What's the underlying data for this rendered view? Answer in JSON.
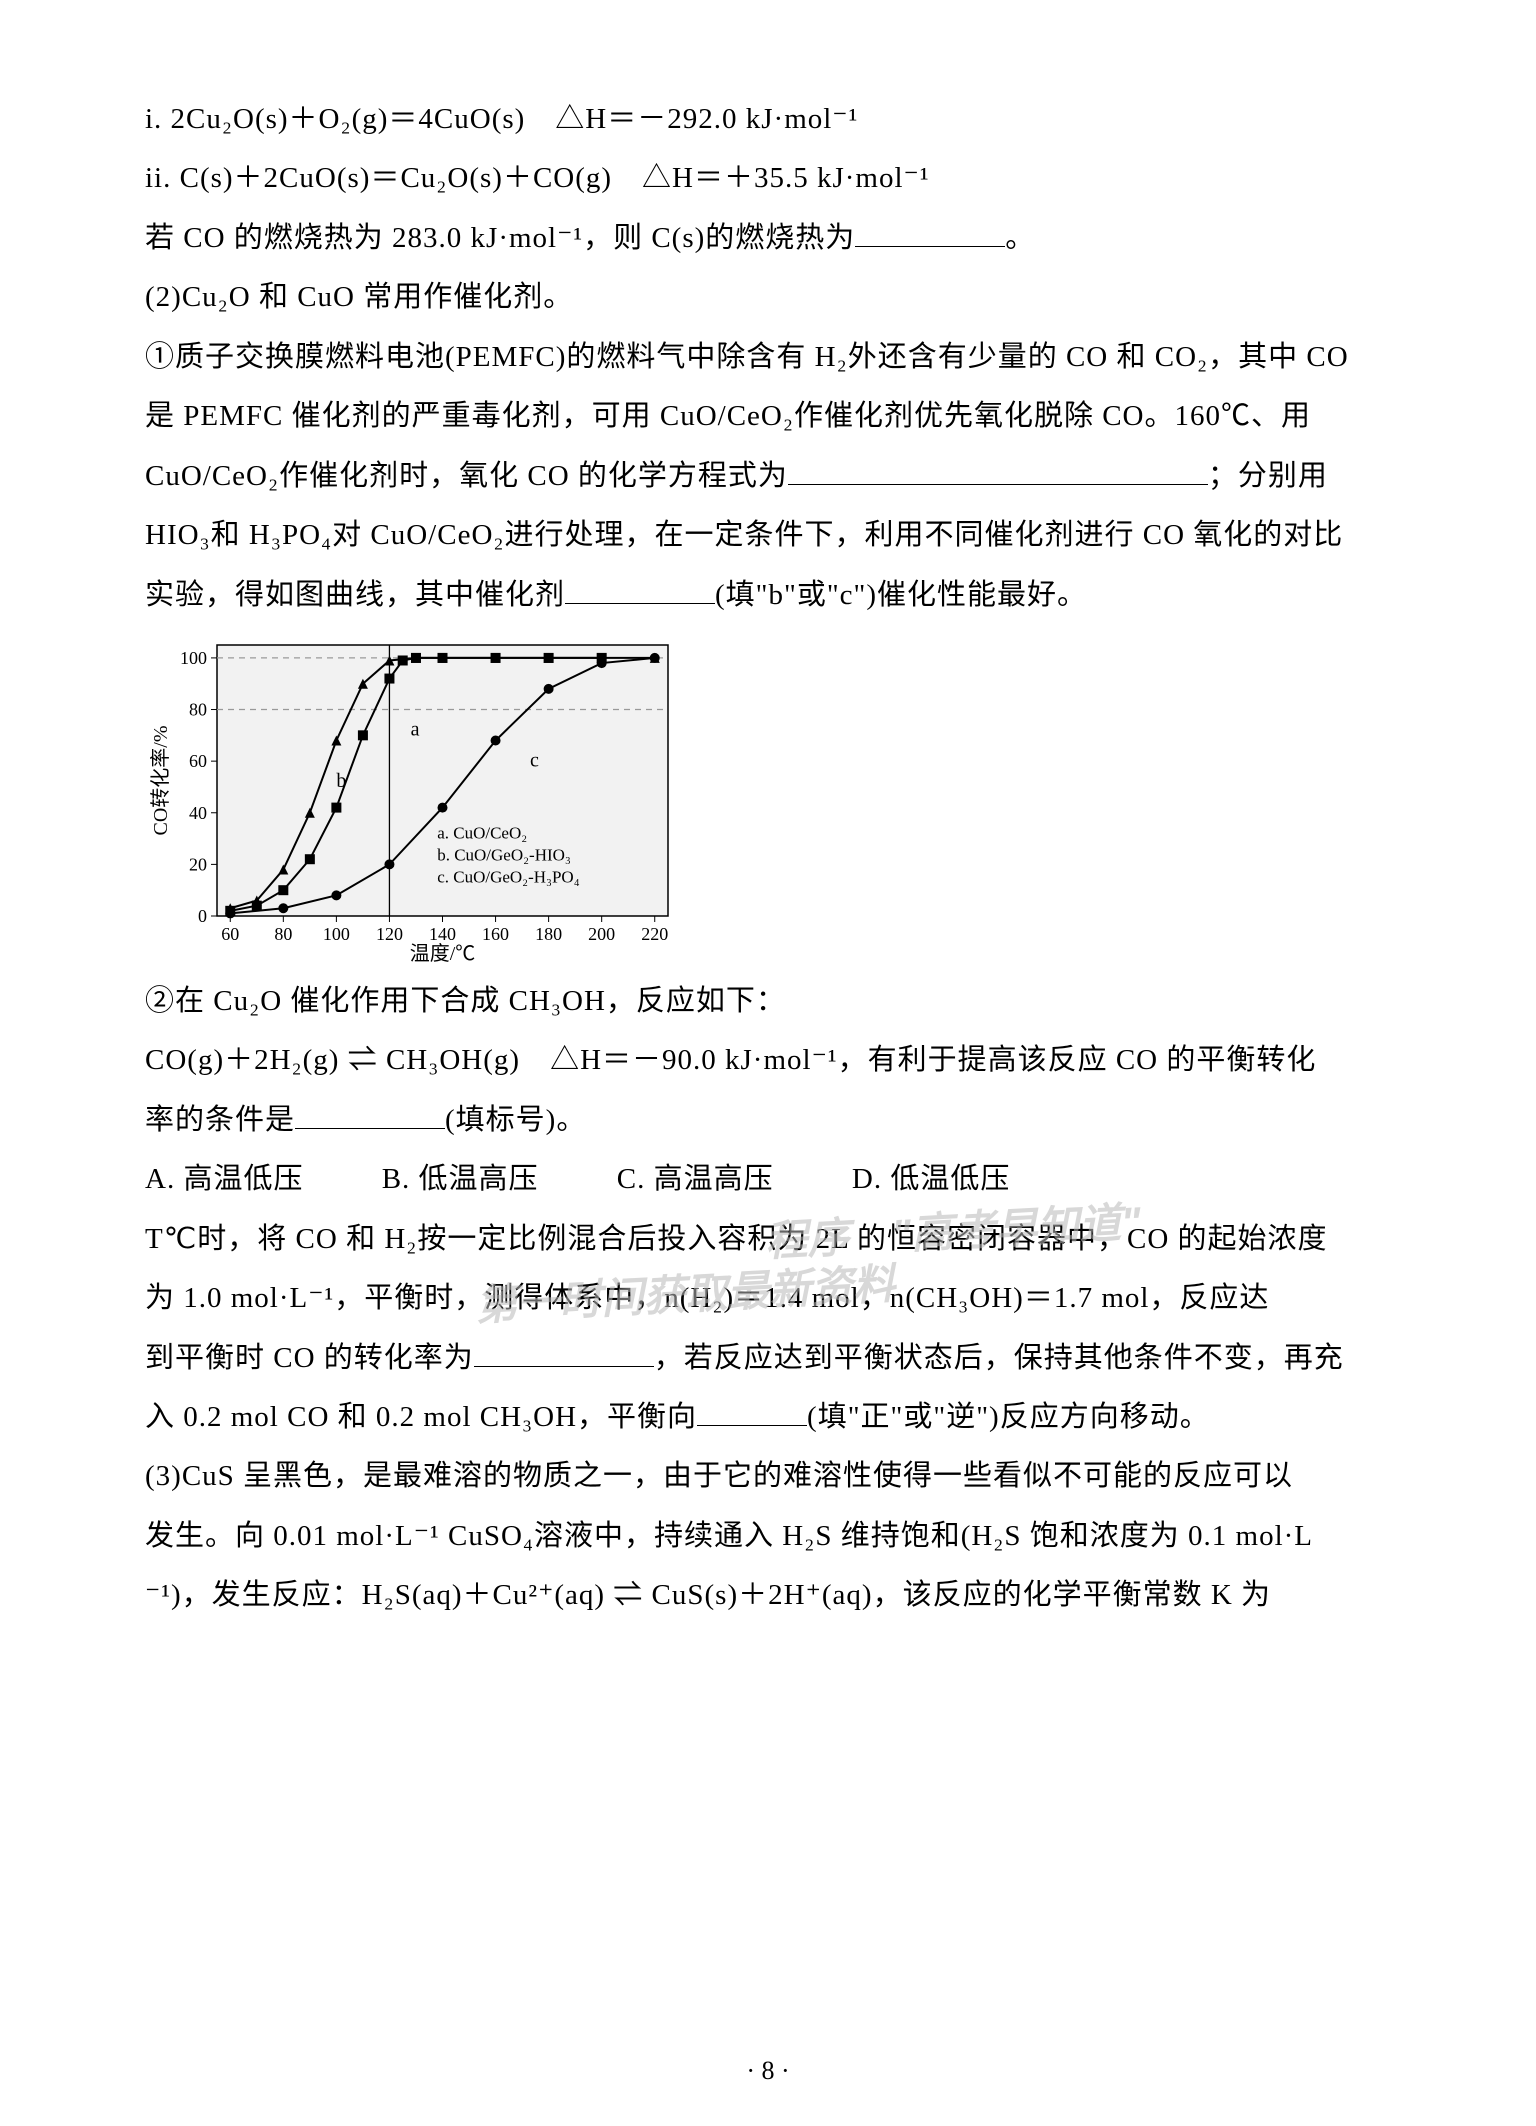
{
  "lines": {
    "eq_i": "i. 2Cu₂O(s)＋O₂(g)＝4CuO(s)　△H＝－292.0 kJ·mol⁻¹",
    "eq_ii": "ii. C(s)＋2CuO(s)＝Cu₂O(s)＋CO(g)　△H＝＋35.5 kJ·mol⁻¹",
    "l3a": "若 CO 的燃烧热为 283.0 kJ·mol⁻¹，则 C(s)的燃烧热为",
    "l3b": "。",
    "l4": "(2)Cu₂O 和 CuO 常用作催化剂。",
    "l5": "①质子交换膜燃料电池(PEMFC)的燃料气中除含有 H₂外还含有少量的 CO 和 CO₂，其中 CO",
    "l6": "是 PEMFC 催化剂的严重毒化剂，可用 CuO/CeO₂作催化剂优先氧化脱除 CO。160℃、用",
    "l7a": "CuO/CeO₂作催化剂时，氧化 CO 的化学方程式为",
    "l7b": "；分别用",
    "l8": "HIO₃和 H₃PO₄对 CuO/CeO₂进行处理，在一定条件下，利用不同催化剂进行 CO 氧化的对比",
    "l9a": "实验，得如图曲线，其中催化剂",
    "l9b": "(填\"b\"或\"c\")催化性能最好。",
    "l10": "②在 Cu₂O 催化作用下合成 CH₃OH，反应如下：",
    "l11": "CO(g)＋2H₂(g) ⇌ CH₃OH(g)　△H＝－90.0 kJ·mol⁻¹，有利于提高该反应 CO 的平衡转化",
    "l12a": "率的条件是",
    "l12b": "(填标号)。",
    "optA": "A. 高温低压",
    "optB": "B. 低温高压",
    "optC": "C. 高温高压",
    "optD": "D. 低温低压",
    "l14": "T℃时，将 CO 和 H₂按一定比例混合后投入容积为 2L 的恒容密闭容器中，CO 的起始浓度",
    "l15": "为 1.0 mol·L⁻¹，平衡时，测得体系中，n(H₂)＝1.4 mol，n(CH₃OH)＝1.7 mol，反应达",
    "l16a": "到平衡时 CO 的转化率为",
    "l16b": "，若反应达到平衡状态后，保持其他条件不变，再充",
    "l17a": "入 0.2 mol CO 和 0.2 mol CH₃OH，平衡向",
    "l17b": "(填\"正\"或\"逆\")反应方向移动。",
    "l18": "(3)CuS 呈黑色，是最难溶的物质之一，由于它的难溶性使得一些看似不可能的反应可以",
    "l19": "发生。向 0.01 mol·L⁻¹ CuSO₄溶液中，持续通入 H₂S 维持饱和(H₂S 饱和浓度为 0.1 mol·L",
    "l20": "⁻¹)，发生反应：H₂S(aq)＋Cu²⁺(aq) ⇌ CuS(s)＋2H⁺(aq)，该反应的化学平衡常数 K 为"
  },
  "chart": {
    "type": "line",
    "xlabel": "温度/℃",
    "ylabel": "CO转化率/%",
    "xlim": [
      55,
      225
    ],
    "ylim": [
      0,
      105
    ],
    "xticks": [
      60,
      80,
      100,
      120,
      140,
      160,
      180,
      200,
      220
    ],
    "yticks": [
      0,
      20,
      40,
      60,
      80,
      100
    ],
    "grid_color": "#999999",
    "background": "#f2f2f2",
    "axis_color": "#000000",
    "line_width": 2,
    "marker_size": 5,
    "series": {
      "a": {
        "label": "a. CuO/CeO₂",
        "marker": "triangle",
        "color": "#000000",
        "x": [
          60,
          70,
          80,
          90,
          100,
          110,
          120,
          130,
          140,
          160,
          180,
          200,
          220
        ],
        "y": [
          3,
          6,
          18,
          40,
          68,
          90,
          99,
          100,
          100,
          100,
          100,
          100,
          100
        ]
      },
      "b": {
        "label": "b. CuO/GeO₂-HIO₃",
        "marker": "square",
        "color": "#000000",
        "x": [
          60,
          70,
          80,
          90,
          100,
          110,
          120,
          125,
          130,
          140,
          160,
          180,
          200
        ],
        "y": [
          2,
          4,
          10,
          22,
          42,
          70,
          92,
          99,
          100,
          100,
          100,
          100,
          100
        ]
      },
      "c": {
        "label": "c. CuO/GeO₂-H₃PO₄",
        "marker": "circle",
        "color": "#000000",
        "x": [
          60,
          80,
          100,
          120,
          140,
          160,
          180,
          200,
          220
        ],
        "y": [
          1,
          3,
          8,
          20,
          42,
          68,
          88,
          98,
          100
        ]
      }
    },
    "dashed_y": [
      80,
      100
    ],
    "vline_x": 120,
    "annot": {
      "a_xy": [
        128,
        70
      ],
      "b_xy": [
        100,
        50
      ],
      "c_xy": [
        173,
        58
      ]
    }
  },
  "watermarks": {
    "w1": "\"高考早知道\"",
    "w2": "第一时间获取最新资料",
    "w0": "程序"
  },
  "page": "· 8 ·"
}
